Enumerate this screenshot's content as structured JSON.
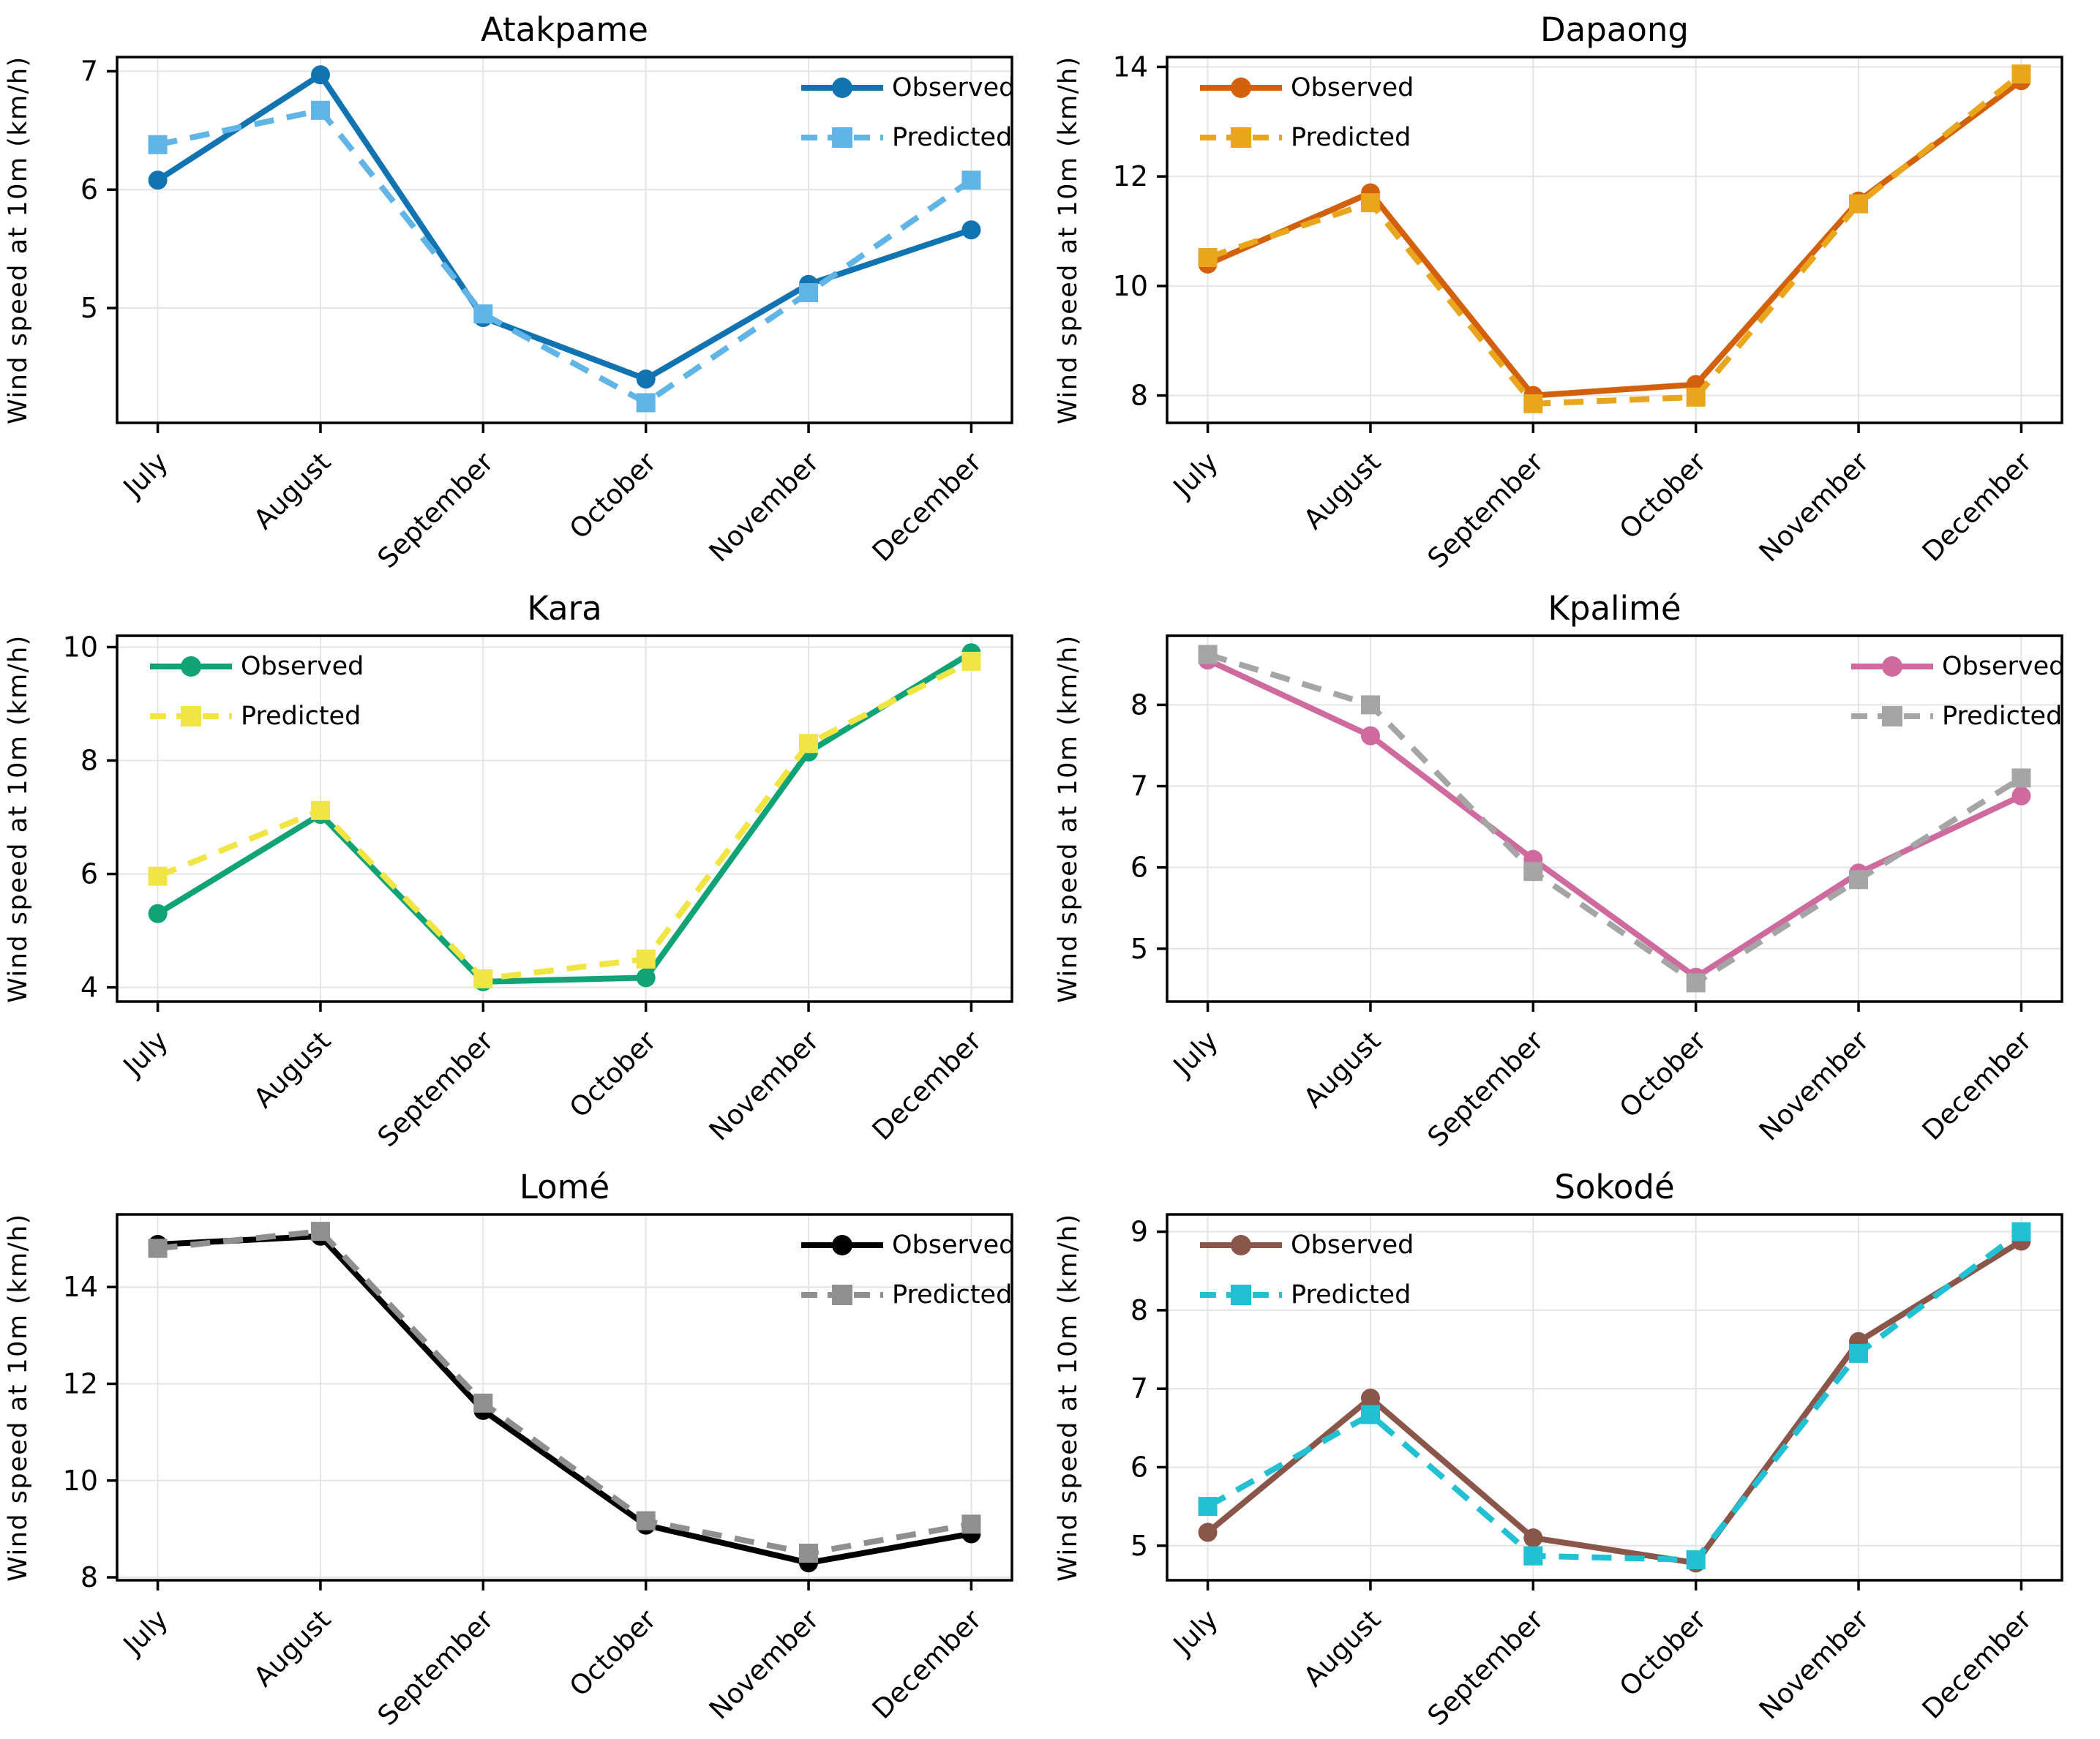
{
  "figure": {
    "ylabel": "Wind speed at 10m (km/h)",
    "months": [
      "July",
      "August",
      "September",
      "October",
      "November",
      "December"
    ],
    "series_labels": [
      "Observed",
      "Predicted"
    ],
    "background_color": "#ffffff",
    "grid_color": "#e4e4e4"
  },
  "chart_data": [
    {
      "type": "line",
      "title": "Atakpame",
      "xlabel": "",
      "ylabel": "Wind speed at 10m (km/h)",
      "categories": [
        "July",
        "August",
        "September",
        "October",
        "November",
        "December"
      ],
      "series": [
        {
          "name": "Observed",
          "style": "solid",
          "marker": "circle",
          "color": "#1173b0",
          "values": [
            6.08,
            6.97,
            4.92,
            4.4,
            5.2,
            5.66
          ]
        },
        {
          "name": "Predicted",
          "style": "dashed",
          "marker": "square",
          "color": "#61b4e6",
          "values": [
            6.38,
            6.67,
            4.95,
            4.2,
            5.13,
            6.08
          ]
        }
      ],
      "ylim": [
        4.03,
        7.12
      ],
      "yticks": [
        5,
        6,
        7
      ],
      "legend_position": "top-right",
      "grid": true
    },
    {
      "type": "line",
      "title": "Dapaong",
      "xlabel": "",
      "ylabel": "Wind speed at 10m (km/h)",
      "categories": [
        "July",
        "August",
        "September",
        "October",
        "November",
        "December"
      ],
      "series": [
        {
          "name": "Observed",
          "style": "solid",
          "marker": "circle",
          "color": "#d2600d",
          "values": [
            10.4,
            11.7,
            8.0,
            8.2,
            11.55,
            13.75
          ]
        },
        {
          "name": "Predicted",
          "style": "dashed",
          "marker": "square",
          "color": "#e9a51c",
          "values": [
            10.52,
            11.52,
            7.85,
            7.97,
            11.5,
            13.87
          ]
        }
      ],
      "ylim": [
        7.5,
        14.18
      ],
      "yticks": [
        8,
        10,
        12,
        14
      ],
      "legend_position": "top-left",
      "grid": true
    },
    {
      "type": "line",
      "title": "Kara",
      "xlabel": "",
      "ylabel": "Wind speed at 10m (km/h)",
      "categories": [
        "July",
        "August",
        "September",
        "October",
        "November",
        "December"
      ],
      "series": [
        {
          "name": "Observed",
          "style": "solid",
          "marker": "circle",
          "color": "#0fa376",
          "values": [
            5.3,
            7.05,
            4.1,
            4.17,
            8.15,
            9.9
          ]
        },
        {
          "name": "Predicted",
          "style": "dashed",
          "marker": "square",
          "color": "#f0e543",
          "values": [
            5.96,
            7.12,
            4.15,
            4.5,
            8.3,
            9.75
          ]
        }
      ],
      "ylim": [
        3.75,
        10.2
      ],
      "yticks": [
        4,
        6,
        8,
        10
      ],
      "legend_position": "top-left",
      "grid": true
    },
    {
      "type": "line",
      "title": "Kpalimé",
      "xlabel": "",
      "ylabel": "Wind speed at 10m (km/h)",
      "categories": [
        "July",
        "August",
        "September",
        "October",
        "November",
        "December"
      ],
      "series": [
        {
          "name": "Observed",
          "style": "solid",
          "marker": "circle",
          "color": "#ce6a9d",
          "values": [
            8.55,
            7.62,
            6.1,
            4.65,
            5.93,
            6.88
          ]
        },
        {
          "name": "Predicted",
          "style": "dashed",
          "marker": "square",
          "color": "#a5a5a5",
          "values": [
            8.62,
            8.0,
            5.95,
            4.58,
            5.85,
            7.1
          ]
        }
      ],
      "ylim": [
        4.35,
        8.85
      ],
      "yticks": [
        5,
        6,
        7,
        8
      ],
      "legend_position": "top-right",
      "grid": true
    },
    {
      "type": "line",
      "title": "Lomé",
      "xlabel": "",
      "ylabel": "Wind speed at 10m (km/h)",
      "categories": [
        "July",
        "August",
        "September",
        "October",
        "November",
        "December"
      ],
      "series": [
        {
          "name": "Observed",
          "style": "solid",
          "marker": "circle",
          "color": "#000000",
          "values": [
            14.88,
            15.05,
            11.45,
            9.08,
            8.3,
            8.9
          ]
        },
        {
          "name": "Predicted",
          "style": "dashed",
          "marker": "square",
          "color": "#8f8f8f",
          "values": [
            14.8,
            15.15,
            11.6,
            9.17,
            8.5,
            9.1
          ]
        }
      ],
      "ylim": [
        7.94,
        15.5
      ],
      "yticks": [
        8,
        10,
        12,
        14
      ],
      "legend_position": "top-right",
      "grid": true
    },
    {
      "type": "line",
      "title": "Sokodé",
      "xlabel": "",
      "ylabel": "Wind speed at 10m (km/h)",
      "categories": [
        "July",
        "August",
        "September",
        "October",
        "November",
        "December"
      ],
      "series": [
        {
          "name": "Observed",
          "style": "solid",
          "marker": "circle",
          "color": "#8a564a",
          "values": [
            5.17,
            6.88,
            5.1,
            4.78,
            7.6,
            8.88
          ]
        },
        {
          "name": "Predicted",
          "style": "dashed",
          "marker": "square",
          "color": "#21c0d3",
          "values": [
            5.5,
            6.67,
            4.87,
            4.82,
            7.45,
            9.0
          ]
        }
      ],
      "ylim": [
        4.56,
        9.22
      ],
      "yticks": [
        5,
        6,
        7,
        8,
        9
      ],
      "legend_position": "top-left",
      "grid": true
    }
  ]
}
